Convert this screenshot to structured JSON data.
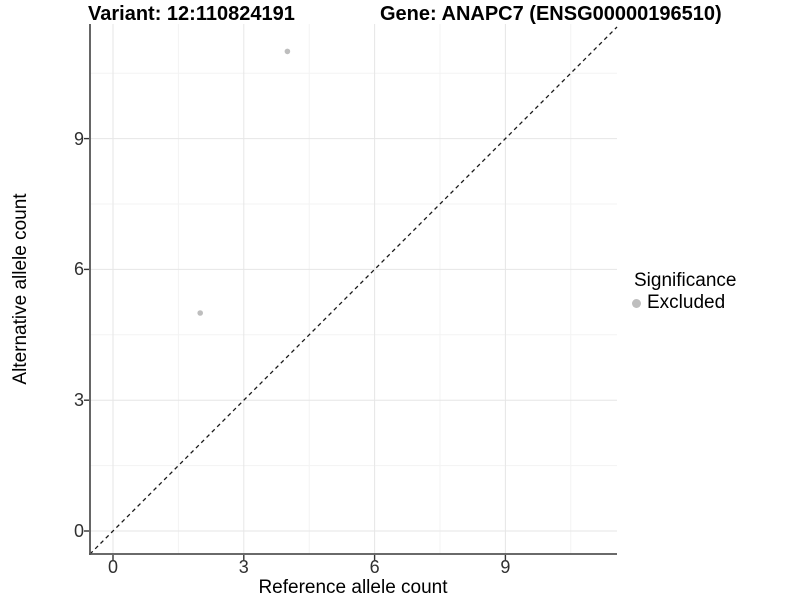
{
  "titles": {
    "variant": "Variant: 12:110824191",
    "gene": "Gene: ANAPC7 (ENSG00000196510)"
  },
  "legend": {
    "title": "Significance",
    "items": [
      {
        "label": "Excluded",
        "color": "#bebebe"
      }
    ]
  },
  "colors": {
    "point": "#bebebe",
    "grid_major": "#e6e6e6",
    "grid_minor": "#f3f3f3",
    "axis_line": "#555555",
    "tick_mark": "#333333",
    "dashed_line": "#1a1a1a",
    "tick_text": "#303030"
  },
  "chart_data": {
    "type": "scatter",
    "title": "Variant: 12:110824191 | Gene: ANAPC7 (ENSG00000196510)",
    "xlabel": "Reference allele count",
    "ylabel": "Alternative allele count",
    "xlim": [
      -0.53,
      11.56
    ],
    "ylim": [
      -0.53,
      11.63
    ],
    "x_ticks": [
      0,
      3,
      6,
      9
    ],
    "y_ticks": [
      0,
      3,
      6,
      9
    ],
    "x_minor_ticks": [
      1.5,
      4.5,
      7.5,
      10.5
    ],
    "y_minor_ticks": [
      1.5,
      4.5,
      7.5,
      10.5
    ],
    "grid": true,
    "legend_position": "right",
    "series": [
      {
        "name": "Excluded",
        "color": "#bebebe",
        "points": [
          [
            2,
            5
          ],
          [
            4,
            11
          ]
        ]
      }
    ],
    "reference_line": {
      "type": "identity y=x",
      "style": "dashed",
      "color": "#1a1a1a"
    }
  }
}
